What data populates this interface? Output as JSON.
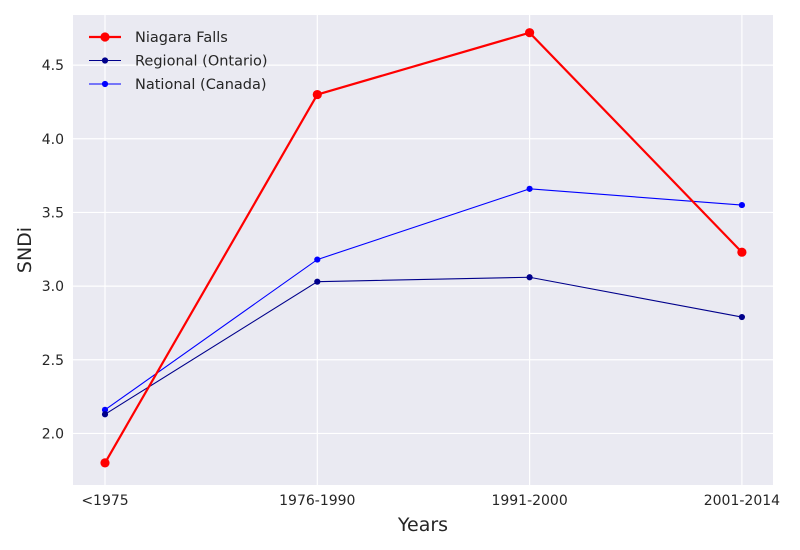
{
  "chart_data": {
    "type": "line",
    "title": "",
    "xlabel": "Years",
    "ylabel": "SNDi",
    "categories": [
      "<1975",
      "1976-1990",
      "1991-2000",
      "2001-2014"
    ],
    "ylim": [
      1.65,
      4.84
    ],
    "yticks": [
      2.0,
      2.5,
      3.0,
      3.5,
      4.0,
      4.5
    ],
    "ytick_labels": [
      "2.0",
      "2.5",
      "3.0",
      "3.5",
      "4.0",
      "4.5"
    ],
    "grid": true,
    "legend_position": "top-left",
    "series": [
      {
        "name": "Niagara Falls",
        "color": "#ff0000",
        "values": [
          1.8,
          4.3,
          4.72,
          3.23
        ]
      },
      {
        "name": "Regional (Ontario)",
        "color": "#00008b",
        "values": [
          2.13,
          3.03,
          3.06,
          2.79
        ]
      },
      {
        "name": "National (Canada)",
        "color": "#0000ff",
        "values": [
          2.16,
          3.18,
          3.66,
          3.55
        ]
      }
    ]
  }
}
